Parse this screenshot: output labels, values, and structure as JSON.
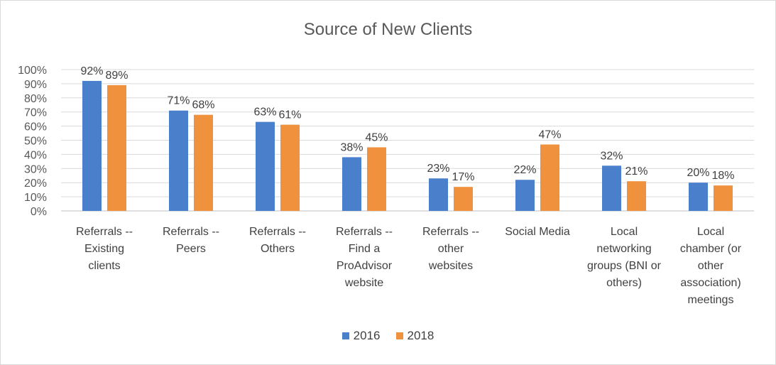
{
  "chart_data": {
    "type": "bar",
    "title": "Source of New Clients",
    "categories": [
      "Referrals -- Existing clients",
      "Referrals -- Peers",
      "Referrals -- Others",
      "Referrals -- Find a ProAdvisor website",
      "Referrals -- other websites",
      "Social Media",
      "Local networking groups (BNI or others)",
      "Local chamber (or other association) meetings"
    ],
    "category_lines": [
      [
        "Referrals --",
        "Existing",
        "clients"
      ],
      [
        "Referrals --",
        "Peers"
      ],
      [
        "Referrals --",
        "Others"
      ],
      [
        "Referrals --",
        "Find a",
        "ProAdvisor",
        "website"
      ],
      [
        "Referrals --",
        "other",
        "websites"
      ],
      [
        "Social Media"
      ],
      [
        "Local",
        "networking",
        "groups (BNI or",
        "others)"
      ],
      [
        "Local",
        "chamber (or",
        "other",
        "association)",
        "meetings"
      ]
    ],
    "series": [
      {
        "name": "2016",
        "color": "#4a7fcc",
        "values": [
          92,
          71,
          63,
          38,
          23,
          22,
          32,
          20
        ],
        "labels": [
          "92%",
          "71%",
          "63%",
          "38%",
          "23%",
          "22%",
          "32%",
          "20%"
        ]
      },
      {
        "name": "2018",
        "color": "#f0913d",
        "values": [
          89,
          68,
          61,
          45,
          17,
          47,
          21,
          18
        ],
        "labels": [
          "89%",
          "68%",
          "61%",
          "45%",
          "17%",
          "47%",
          "21%",
          "18%"
        ]
      }
    ],
    "y_ticks": [
      "0%",
      "10%",
      "20%",
      "30%",
      "40%",
      "50%",
      "60%",
      "70%",
      "80%",
      "90%",
      "100%"
    ],
    "ylim": [
      0,
      100
    ],
    "grid": true,
    "legend_position": "bottom"
  }
}
